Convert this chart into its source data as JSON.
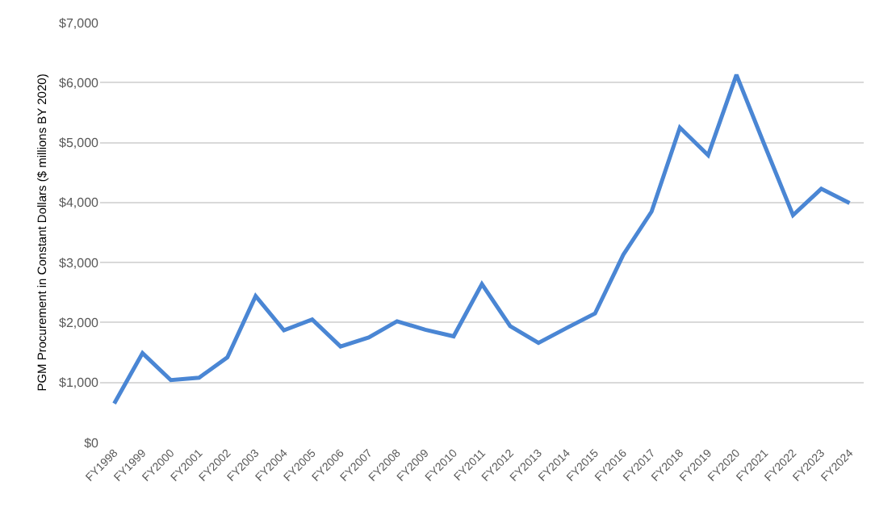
{
  "chart_data": {
    "type": "line",
    "ylabel": "PGM Procurement in Constant Dollars ($ millions BY 2020)",
    "categories": [
      "FY1998",
      "FY1999",
      "FY2000",
      "FY2001",
      "FY2002",
      "FY2003",
      "FY2004",
      "FY2005",
      "FY2006",
      "FY2007",
      "FY2008",
      "FY2009",
      "FY2010",
      "FY2011",
      "FY2012",
      "FY2013",
      "FY2014",
      "FY2015",
      "FY2016",
      "FY2017",
      "FY2018",
      "FY2019",
      "FY2020",
      "FY2021",
      "FY2022",
      "FY2023",
      "FY2024"
    ],
    "series": [
      {
        "color": "#4a86d4",
        "values": [
          650,
          1490,
          1040,
          1080,
          1420,
          2440,
          1870,
          2050,
          1600,
          1750,
          2020,
          1880,
          1770,
          2640,
          1940,
          1660,
          1910,
          2150,
          3130,
          3850,
          5250,
          4790,
          6130,
          4950,
          3790,
          4230,
          3990
        ]
      }
    ],
    "ylim": [
      0,
      7000
    ],
    "yticks": [
      {
        "value": 0,
        "label": "$0"
      },
      {
        "value": 1000,
        "label": "$1,000"
      },
      {
        "value": 2000,
        "label": "$2,000"
      },
      {
        "value": 3000,
        "label": "$3,000"
      },
      {
        "value": 4000,
        "label": "$4,000"
      },
      {
        "value": 5000,
        "label": "$5,000"
      },
      {
        "value": 6000,
        "label": "$6,000"
      },
      {
        "value": 7000,
        "label": "$7,000"
      }
    ],
    "grid": "y",
    "marker": "none",
    "line_style": "solid"
  }
}
